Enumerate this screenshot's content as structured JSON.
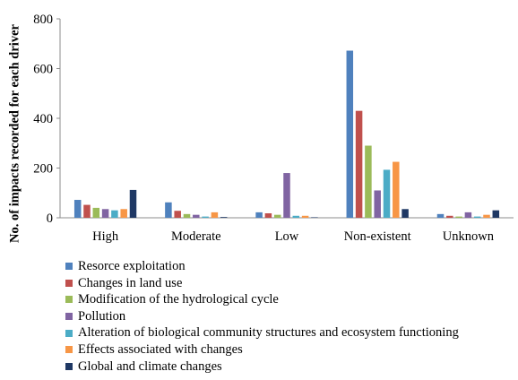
{
  "chart_data": {
    "type": "bar",
    "ylabel": "No. of impacts recorded for each driver",
    "xlabel": "",
    "ylim": [
      0,
      800
    ],
    "yticks": [
      0,
      200,
      400,
      600,
      800
    ],
    "grid": false,
    "legend_position": "bottom",
    "categories": [
      "High",
      "Moderate",
      "Low",
      "Non-existent",
      "Unknown"
    ],
    "series": [
      {
        "name": "Resorce exploitation",
        "color": "#4F81BD",
        "values": [
          72,
          62,
          22,
          672,
          15
        ]
      },
      {
        "name": "Changes in land use",
        "color": "#C0504D",
        "values": [
          52,
          28,
          18,
          430,
          8
        ]
      },
      {
        "name": "Modification of the hydrological cycle",
        "color": "#9BBB59",
        "values": [
          40,
          15,
          12,
          290,
          5
        ]
      },
      {
        "name": "Pollution",
        "color": "#8064A2",
        "values": [
          35,
          12,
          180,
          110,
          22
        ]
      },
      {
        "name": "Alteration of biological community structures and ecosystem functioning",
        "color": "#4BACC6",
        "values": [
          30,
          5,
          8,
          193,
          5
        ]
      },
      {
        "name": "Effects associated with changes",
        "color": "#F79646",
        "values": [
          35,
          22,
          8,
          225,
          12
        ]
      },
      {
        "name": "Global and climate changes",
        "color": "#1F3864",
        "values": [
          112,
          3,
          2,
          35,
          30
        ]
      }
    ]
  }
}
